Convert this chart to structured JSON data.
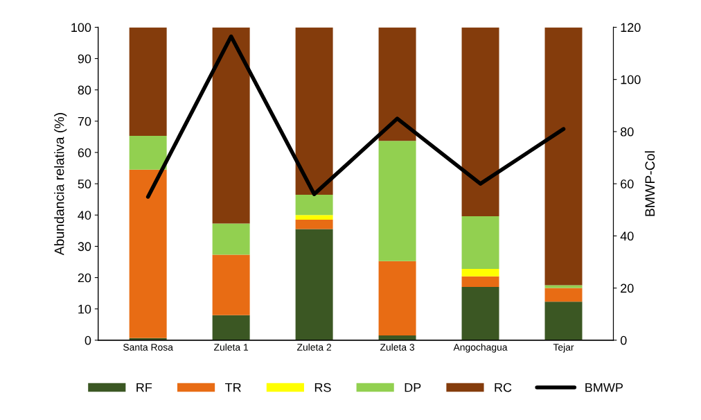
{
  "chart_data": {
    "type": "bar",
    "stacked": true,
    "categories": [
      "Santa Rosa",
      "Zuleta 1",
      "Zuleta 2",
      "Zuleta 3",
      "Angochagua",
      "Tejar"
    ],
    "ylabel": "Abundancia relativa (%)",
    "y2label": "BMWP-Col",
    "ylim": [
      0,
      100
    ],
    "yticks": [
      0,
      10,
      20,
      30,
      40,
      50,
      60,
      70,
      80,
      90,
      100
    ],
    "y2lim": [
      0,
      120
    ],
    "y2ticks": [
      0,
      20,
      40,
      60,
      80,
      100,
      120
    ],
    "grid": false,
    "legend": "bottom",
    "series": [
      {
        "name": "RF",
        "color": "#3b5723",
        "values": [
          0.7,
          8,
          35.5,
          1.5,
          17,
          12.3
        ]
      },
      {
        "name": "TR",
        "color": "#e86c14",
        "values": [
          53.8,
          19.3,
          3,
          23.8,
          3.4,
          4.4
        ]
      },
      {
        "name": "RS",
        "color": "#ffff00",
        "values": [
          0,
          0,
          1.5,
          0,
          2.4,
          0
        ]
      },
      {
        "name": "DP",
        "color": "#92d050",
        "values": [
          10.8,
          10,
          6.5,
          38.4,
          16.8,
          0.9
        ]
      },
      {
        "name": "RC",
        "color": "#843c0c",
        "values": [
          34.7,
          62.7,
          53.5,
          36.3,
          60.4,
          82.4
        ]
      },
      {
        "name": "BMWP",
        "color": "#000000",
        "type": "line",
        "axis": "y2",
        "values": [
          55,
          116.5,
          56,
          85,
          60,
          81
        ]
      }
    ]
  }
}
